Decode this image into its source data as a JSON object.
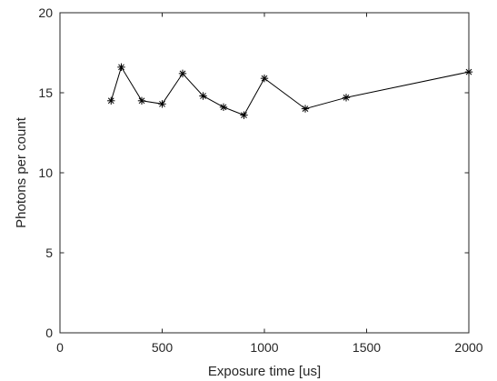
{
  "chart_data": {
    "type": "line",
    "title": "",
    "xlabel": "Exposure time [us]",
    "ylabel": "Photons per count",
    "xlim": [
      0,
      2000
    ],
    "ylim": [
      0,
      20
    ],
    "xticks": [
      0,
      500,
      1000,
      1500,
      2000
    ],
    "yticks": [
      0,
      5,
      10,
      15,
      20
    ],
    "grid": false,
    "marker": "asterisk",
    "line_color": "#000000",
    "series": [
      {
        "x": [
          250,
          300,
          400,
          500,
          600,
          700,
          800,
          900,
          1000,
          1200,
          1400,
          2000
        ],
        "y": [
          14.5,
          16.6,
          14.5,
          14.3,
          16.2,
          14.8,
          14.1,
          13.6,
          15.9,
          14.0,
          14.7,
          16.3
        ]
      }
    ]
  }
}
